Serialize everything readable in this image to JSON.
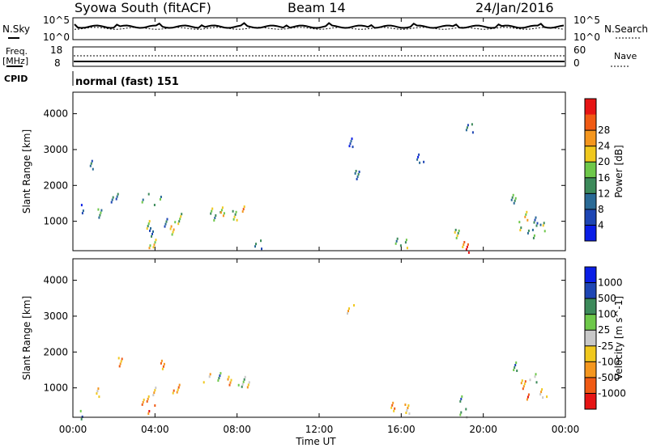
{
  "header": {
    "title": "Syowa South (fitACF)",
    "beam": "Beam 14",
    "date": "24/Jan/2016"
  },
  "top_panel": {
    "left_label": "N.Sky",
    "left_ticks": [
      "10^5",
      "10^0"
    ],
    "right_label": "N.Search",
    "right_ticks": [
      "10^5",
      "10^0"
    ]
  },
  "freq_panel": {
    "left_label_1": "Freq.",
    "left_label_2": "[MHz]",
    "left_ticks": [
      "18",
      "8"
    ],
    "right_label": "Nave",
    "right_ticks": [
      "60",
      "0"
    ]
  },
  "cpid": {
    "label": "CPID",
    "text": "normal (fast) 151"
  },
  "colors": {
    "power": [
      "#0a1ee6",
      "#1e46b4",
      "#2a6a96",
      "#3c8a5a",
      "#6ec84a",
      "#f0c81e",
      "#f4961e",
      "#f05a14",
      "#e61414"
    ],
    "velocity": [
      "#e61414",
      "#f05a14",
      "#f4961e",
      "#f0c81e",
      "#c8c8c8",
      "#6ec84a",
      "#3c8a5a",
      "#1e46b4",
      "#0a1ee6"
    ]
  },
  "chart_data": [
    {
      "type": "heatmap",
      "name_panel": "power",
      "ylabel": "Slant Range [km]",
      "xlabel": "",
      "yticks": [
        "1000",
        "2000",
        "3000",
        "4000"
      ],
      "xlim_hours": [
        0,
        24
      ],
      "ylim_km": [
        180,
        4600
      ],
      "colorbar_label": "Power [dB]",
      "colorbar_ticks": [
        "4",
        "8",
        "12",
        "16",
        "20",
        "24",
        "28"
      ],
      "colorbar_range": [
        0,
        32
      ],
      "patches": [
        {
          "t": 0.55,
          "r": 1350,
          "v": 1
        },
        {
          "t": 0.9,
          "r": 2600,
          "v": 2
        },
        {
          "t": 1.2,
          "r": 1250,
          "v": 3
        },
        {
          "t": 2.0,
          "r": 1700,
          "v": 2
        },
        {
          "t": 3.5,
          "r": 1700,
          "v": 3
        },
        {
          "t": 3.7,
          "r": 900,
          "v": 4
        },
        {
          "t": 3.75,
          "r": 700,
          "v": 2
        },
        {
          "t": 3.85,
          "r": 400,
          "v": 5
        },
        {
          "t": 4.1,
          "r": 1600,
          "v": 3
        },
        {
          "t": 4.6,
          "r": 1000,
          "v": 2
        },
        {
          "t": 4.8,
          "r": 800,
          "v": 5
        },
        {
          "t": 5.1,
          "r": 1100,
          "v": 4
        },
        {
          "t": 6.6,
          "r": 1250,
          "v": 4
        },
        {
          "t": 7.0,
          "r": 1150,
          "v": 3
        },
        {
          "t": 7.3,
          "r": 1300,
          "v": 5
        },
        {
          "t": 7.8,
          "r": 1200,
          "v": 4
        },
        {
          "t": 8.2,
          "r": 1350,
          "v": 6
        },
        {
          "t": 9.0,
          "r": 400,
          "v": 2
        },
        {
          "t": 13.6,
          "r": 3200,
          "v": 1
        },
        {
          "t": 13.8,
          "r": 2300,
          "v": 2
        },
        {
          "t": 15.7,
          "r": 500,
          "v": 3
        },
        {
          "t": 16.1,
          "r": 400,
          "v": 4
        },
        {
          "t": 16.9,
          "r": 2800,
          "v": 1
        },
        {
          "t": 18.7,
          "r": 700,
          "v": 4
        },
        {
          "t": 19.0,
          "r": 450,
          "v": 6
        },
        {
          "t": 19.1,
          "r": 250,
          "v": 8
        },
        {
          "t": 19.3,
          "r": 3600,
          "v": 2
        },
        {
          "t": 21.5,
          "r": 1650,
          "v": 3
        },
        {
          "t": 21.8,
          "r": 900,
          "v": 4
        },
        {
          "t": 22.0,
          "r": 1200,
          "v": 5
        },
        {
          "t": 22.3,
          "r": 700,
          "v": 3
        },
        {
          "t": 22.6,
          "r": 1000,
          "v": 2
        },
        {
          "t": 23.0,
          "r": 850,
          "v": 4
        }
      ]
    },
    {
      "type": "heatmap",
      "name_panel": "velocity",
      "ylabel": "Slant Range [km]",
      "xlabel": "Time UT",
      "yticks": [
        "1000",
        "2000",
        "3000",
        "4000"
      ],
      "xticks": [
        "00:00",
        "04:00",
        "08:00",
        "12:00",
        "16:00",
        "20:00",
        "00:00"
      ],
      "xlim_hours": [
        0,
        24
      ],
      "ylim_km": [
        180,
        4600
      ],
      "colorbar_label": "Velocity [m s^-1]",
      "colorbar_ticks": [
        "1000",
        "500",
        "100",
        "25",
        "-25",
        "-100",
        "-500",
        "-1000"
      ],
      "patches": [
        {
          "t": 0.5,
          "r": 250,
          "v": 6
        },
        {
          "t": 1.2,
          "r": 900,
          "v": 3
        },
        {
          "t": 2.2,
          "r": 1750,
          "v": 2
        },
        {
          "t": 3.5,
          "r": 700,
          "v": 2
        },
        {
          "t": 3.8,
          "r": 450,
          "v": 1
        },
        {
          "t": 4.0,
          "r": 900,
          "v": 3
        },
        {
          "t": 4.3,
          "r": 1650,
          "v": 2
        },
        {
          "t": 5.0,
          "r": 1000,
          "v": 2
        },
        {
          "t": 6.5,
          "r": 1300,
          "v": 3
        },
        {
          "t": 7.2,
          "r": 1350,
          "v": 6
        },
        {
          "t": 7.6,
          "r": 1250,
          "v": 2
        },
        {
          "t": 8.2,
          "r": 1200,
          "v": 5
        },
        {
          "t": 8.4,
          "r": 1050,
          "v": 3
        },
        {
          "t": 13.5,
          "r": 3200,
          "v": 3
        },
        {
          "t": 15.6,
          "r": 500,
          "v": 2
        },
        {
          "t": 16.2,
          "r": 450,
          "v": 3
        },
        {
          "t": 18.8,
          "r": 700,
          "v": 6
        },
        {
          "t": 19.0,
          "r": 350,
          "v": 5
        },
        {
          "t": 21.6,
          "r": 1600,
          "v": 6
        },
        {
          "t": 21.9,
          "r": 1100,
          "v": 2
        },
        {
          "t": 22.1,
          "r": 800,
          "v": 1
        },
        {
          "t": 22.4,
          "r": 1300,
          "v": 5
        },
        {
          "t": 22.9,
          "r": 900,
          "v": 3
        }
      ]
    }
  ]
}
